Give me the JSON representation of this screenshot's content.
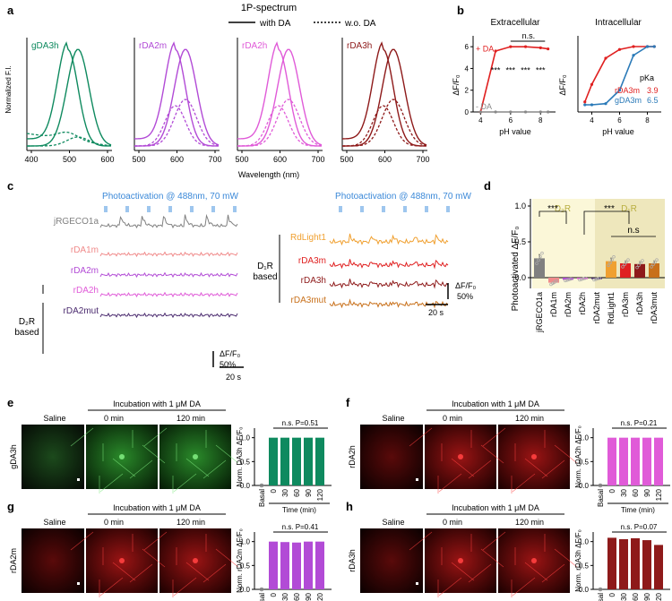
{
  "panel_labels": [
    "a",
    "b",
    "c",
    "d",
    "e",
    "f",
    "g",
    "h"
  ],
  "colors": {
    "gDA3h": "#0f8a5f",
    "rDA2m": "#b24bd6",
    "rDA2h": "#e05bd8",
    "rDA3h": "#8e1a1a",
    "jRGECO1a": "#808080",
    "rDA1m": "#f08a8a",
    "rDA2mut": "#4a2a6e",
    "RdLight1": "#f0a030",
    "rDA3m": "#e02020",
    "rDA3mut": "#c8701a",
    "blue_text": "#3a88d8",
    "olive": "#b8ae40",
    "gDA3m": "#2a7ab8",
    "d2_bg": "#fbf7d8",
    "d1_bg": "#eee7bc"
  },
  "panel_a": {
    "title": "1P-spectrum",
    "legend_with": "with DA",
    "legend_without": "w.o. DA",
    "ylabel": "Normalized F.I.",
    "xlabel": "Wavelength (nm)",
    "sensors": [
      "gDA3h",
      "rDA2m",
      "rDA2h",
      "rDA3h"
    ],
    "ticks": [
      [
        "400",
        "500",
        "600"
      ],
      [
        "500",
        "600",
        "700"
      ],
      [
        "500",
        "600",
        "700"
      ],
      [
        "500",
        "600",
        "700"
      ]
    ]
  },
  "panel_b": {
    "title_left": "Extracellular",
    "title_right": "Intracellular",
    "ylabel": "ΔF/F₀",
    "xlabel": "pH value",
    "yticks_left": [
      "0",
      "2",
      "4",
      "6"
    ],
    "xticks": [
      "4",
      "6",
      "8"
    ],
    "plus_da": "+ DA",
    "minus_da": "- DA",
    "ns": "n.s.",
    "stars": "***",
    "pka_label": "pKa",
    "pka_rows": [
      {
        "name": "rDA3m",
        "value": "3.9"
      },
      {
        "name": "gDA3m",
        "value": "6.5"
      }
    ]
  },
  "panel_c": {
    "photo_label_left": "Photoactivation @ 488nm, 70 mW",
    "photo_label_right": "Photoactivation @ 488nm, 70 mW",
    "left_traces": [
      "jRGECO1a",
      "rDA1m",
      "rDA2m",
      "rDA2h",
      "rDA2mut"
    ],
    "right_traces": [
      "RdLight1",
      "rDA3m",
      "rDA3h",
      "rDA3mut"
    ],
    "group_left_line1": "D₂R",
    "group_left_line2": "based",
    "group_right_line1": "D₁R",
    "group_right_line2": "based",
    "scale_y": "ΔF/F₀",
    "scale_y_val": "50%",
    "scale_x": "20 s"
  },
  "panel_d": {
    "ylabel": "Photoactivated ΔF/F₀",
    "yticks": [
      "0.0",
      "0.5",
      "1.0"
    ],
    "group1": "D₂R",
    "group2": "D₁R",
    "sig": "***",
    "ns": "n.s"
  },
  "chart_data": [
    {
      "type": "bar",
      "title": "Photoactivated ΔF/F₀",
      "categories": [
        "jRGECO1a",
        "rDA1m",
        "rDA2m",
        "rDA2h",
        "rDA2mut",
        "RdLight1",
        "rDA3m",
        "rDA3h",
        "rDA3mut"
      ],
      "values": [
        0.27,
        -0.07,
        -0.03,
        -0.02,
        -0.02,
        0.23,
        0.2,
        0.19,
        0.2
      ],
      "errors": [
        0.06,
        0.02,
        0.01,
        0.01,
        0.01,
        0.05,
        0.04,
        0.04,
        0.04
      ],
      "ylabel": "Photoactivated ΔF/F₀",
      "ylim": [
        -0.15,
        1.1
      ]
    },
    {
      "type": "bar",
      "sensor": "gDA3h",
      "ylabel": "Norm. DA3h ΔF/F₀",
      "categories": [
        "Basal",
        "0",
        "30",
        "60",
        "90",
        "120"
      ],
      "values": [
        0.0,
        1.0,
        1.0,
        1.0,
        1.0,
        1.0
      ],
      "ylim": [
        0,
        1.2
      ],
      "xlabel": "Time (min)",
      "ann": "n.s. P=0.51"
    },
    {
      "type": "bar",
      "sensor": "rDA2h",
      "ylabel": "Norm. rDA2h ΔF/F₀",
      "categories": [
        "Basal",
        "0",
        "30",
        "60",
        "90",
        "120"
      ],
      "values": [
        0.0,
        1.0,
        1.0,
        1.0,
        1.0,
        1.0
      ],
      "ylim": [
        0,
        1.2
      ],
      "xlabel": "Time (min)",
      "ann": "n.s. P=0.21"
    },
    {
      "type": "bar",
      "sensor": "rDA2m",
      "ylabel": "Norm. rDA2m ΔF/F₀",
      "categories": [
        "Basal",
        "0",
        "30",
        "60",
        "90",
        "120"
      ],
      "values": [
        0.0,
        1.0,
        0.99,
        0.98,
        1.0,
        1.0
      ],
      "ylim": [
        0,
        1.2
      ],
      "xlabel": "Time (min)",
      "ann": "n.s. P=0.41"
    },
    {
      "type": "bar",
      "sensor": "rDA3h",
      "ylabel": "Norm. rDA3h ΔF/F₀",
      "categories": [
        "Basal",
        "0",
        "30",
        "60",
        "90",
        "120"
      ],
      "values": [
        0.0,
        1.08,
        1.05,
        1.07,
        1.03,
        0.93
      ],
      "ylim": [
        0,
        1.2
      ],
      "xlabel": "Time (min)",
      "ann": "n.s. P=0.07"
    },
    {
      "type": "line",
      "title": "Extracellular",
      "xlabel": "pH value",
      "ylabel": "ΔF/F₀",
      "series": [
        {
          "name": "+ DA",
          "x": [
            4,
            5,
            6,
            7,
            8,
            8.5
          ],
          "y": [
            0,
            5.6,
            6.0,
            6.0,
            5.9,
            5.8
          ]
        },
        {
          "name": "- DA",
          "x": [
            4,
            5,
            6,
            7,
            8,
            8.5
          ],
          "y": [
            0,
            0,
            0,
            0,
            0,
            0
          ]
        }
      ],
      "ylim": [
        0,
        7
      ]
    },
    {
      "type": "line",
      "title": "Intracellular",
      "xlabel": "pH value",
      "ylabel": "ΔF/F₀",
      "series": [
        {
          "name": "rDA3m",
          "x": [
            3.5,
            4,
            5,
            6,
            7,
            8,
            8.5
          ],
          "y": [
            0.05,
            0.35,
            0.8,
            0.95,
            1.0,
            1.0,
            1.0
          ]
        },
        {
          "name": "gDA3m",
          "x": [
            3.5,
            4,
            5,
            6,
            7,
            8,
            8.5
          ],
          "y": [
            0,
            0,
            0.02,
            0.25,
            0.85,
            1.0,
            1.0
          ]
        }
      ]
    }
  ],
  "panel_efgh": [
    {
      "letter": "e",
      "sensor": "gDA3h",
      "ylabel_img": "gDA3h",
      "header": "Incubation with 1 μM DA",
      "saline": "Saline",
      "t0": "0 min",
      "t1": "120 min",
      "ann": "n.s. P=0.51",
      "xlabel": "Time (min)",
      "ylabel": "Norm. DA3h ΔF/F₀",
      "yticks": [
        "0.0",
        "0.5",
        "1.0"
      ],
      "cats": [
        "Basal",
        "0",
        "30",
        "60",
        "90",
        "120"
      ]
    },
    {
      "letter": "f",
      "sensor": "rDA2h",
      "ylabel_img": "rDA2h",
      "header": "Incubation with 1 μM DA",
      "saline": "Saline",
      "t0": "0 min",
      "t1": "120 min",
      "ann": "n.s. P=0.21",
      "xlabel": "Time (min)",
      "ylabel": "Norm. rDA2h ΔF/F₀",
      "yticks": [
        "0.0",
        "0.5",
        "1.0"
      ],
      "cats": [
        "Basal",
        "0",
        "30",
        "60",
        "90",
        "120"
      ]
    },
    {
      "letter": "g",
      "sensor": "rDA2m",
      "ylabel_img": "rDA2m",
      "header": "Incubation with 1 μM DA",
      "saline": "Saline",
      "t0": "0 min",
      "t1": "120 min",
      "ann": "n.s. P=0.41",
      "xlabel": "Time (min)",
      "ylabel": "Norm. rDA2m ΔF/F₀",
      "yticks": [
        "0.0",
        "0.5",
        "1.0"
      ],
      "cats": [
        "Basal",
        "0",
        "30",
        "60",
        "90",
        "120"
      ]
    },
    {
      "letter": "h",
      "sensor": "rDA3h",
      "ylabel_img": "rDA3h",
      "header": "Incubation with 1 μM DA",
      "saline": "Saline",
      "t0": "0 min",
      "t1": "120 min",
      "ann": "n.s. P=0.07",
      "xlabel": "Time (min)",
      "ylabel": "Norm. rDA3h ΔF/F₀",
      "yticks": [
        "0.0",
        "0.5",
        "1.0"
      ],
      "cats": [
        "Basal",
        "0",
        "30",
        "60",
        "90",
        "120"
      ]
    }
  ]
}
